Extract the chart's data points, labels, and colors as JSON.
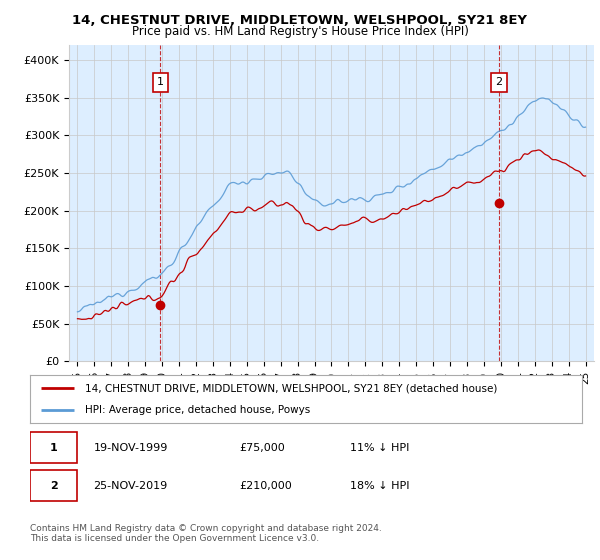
{
  "title": "14, CHESTNUT DRIVE, MIDDLETOWN, WELSHPOOL, SY21 8EY",
  "subtitle": "Price paid vs. HM Land Registry's House Price Index (HPI)",
  "ylabel_ticks": [
    "£0",
    "£50K",
    "£100K",
    "£150K",
    "£200K",
    "£250K",
    "£300K",
    "£350K",
    "£400K"
  ],
  "ytick_values": [
    0,
    50000,
    100000,
    150000,
    200000,
    250000,
    300000,
    350000,
    400000
  ],
  "ylim": [
    0,
    420000
  ],
  "xlim_start": 1994.5,
  "xlim_end": 2025.5,
  "sale1_date": 1999.9,
  "sale1_price": 75000,
  "sale1_label": "1",
  "sale2_date": 2019.9,
  "sale2_price": 210000,
  "sale2_label": "2",
  "hpi_color": "#5b9bd5",
  "price_color": "#c00000",
  "annotation_color": "#c00000",
  "grid_color": "#c8c8c8",
  "chart_bg": "#ddeeff",
  "background_color": "#ffffff",
  "legend_line1": "14, CHESTNUT DRIVE, MIDDLETOWN, WELSHPOOL, SY21 8EY (detached house)",
  "legend_line2": "HPI: Average price, detached house, Powys",
  "table_row1": [
    "1",
    "19-NOV-1999",
    "£75,000",
    "11% ↓ HPI"
  ],
  "table_row2": [
    "2",
    "25-NOV-2019",
    "£210,000",
    "18% ↓ HPI"
  ],
  "footer": "Contains HM Land Registry data © Crown copyright and database right 2024.\nThis data is licensed under the Open Government Licence v3.0."
}
